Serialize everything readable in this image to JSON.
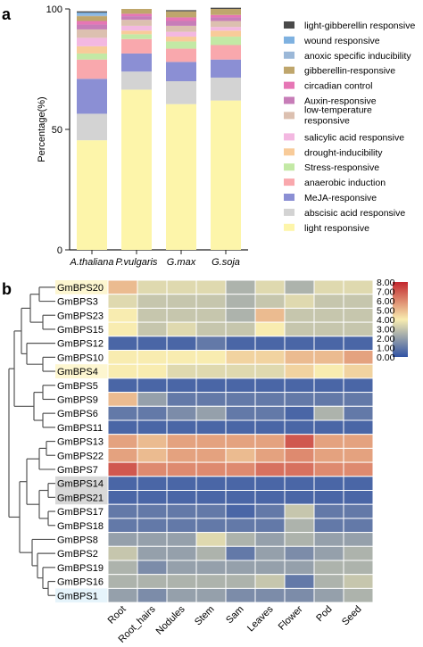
{
  "panels": {
    "a": "a",
    "b": "b"
  },
  "chart_data": [
    {
      "type": "bar",
      "stacked": true,
      "categories": [
        "A.thaliana",
        "P.vulgaris",
        "G.max",
        "G.soja"
      ],
      "ylabel": "Percentage(%)",
      "yticks": [
        0,
        50,
        100
      ],
      "ylim": [
        0,
        100
      ],
      "legend_position": "right",
      "series": [
        {
          "name": "light responsive",
          "color": "#fdf5aa",
          "values": [
            45.5,
            66.5,
            60.5,
            62.0
          ]
        },
        {
          "name": "abscisic acid responsive",
          "color": "#d3d3d3",
          "values": [
            11.0,
            7.5,
            9.5,
            9.5
          ]
        },
        {
          "name": "MeJA-responsive",
          "color": "#8b8fd4",
          "values": [
            14.5,
            7.5,
            8.0,
            7.5
          ]
        },
        {
          "name": "anaerobic induction",
          "color": "#f9a8ad",
          "values": [
            8.0,
            6.0,
            5.5,
            6.0
          ]
        },
        {
          "name": "Stress-responsive",
          "color": "#c3e9a5",
          "values": [
            2.5,
            2.0,
            3.0,
            3.5
          ]
        },
        {
          "name": "drought-inducibility",
          "color": "#f8cb99",
          "values": [
            3.0,
            1.5,
            2.0,
            2.5
          ]
        },
        {
          "name": "salicylic acid responsive",
          "color": "#f3b8e1",
          "values": [
            3.5,
            2.0,
            2.0,
            1.5
          ]
        },
        {
          "name": "low-temperature responsive",
          "color": "#dcc0b0",
          "values": [
            3.5,
            2.5,
            2.5,
            2.5
          ]
        },
        {
          "name": "Auxin-responsive",
          "color": "#c77db8",
          "values": [
            2.0,
            1.5,
            2.0,
            1.5
          ]
        },
        {
          "name": "circadian control",
          "color": "#e676b5",
          "values": [
            1.5,
            1.0,
            1.5,
            1.0
          ]
        },
        {
          "name": "gibberellin-responsive",
          "color": "#bfa66c",
          "values": [
            2.0,
            2.0,
            2.5,
            2.5
          ]
        },
        {
          "name": "anoxic specific inducibility",
          "color": "#9bb8d8",
          "values": [
            0.5,
            0.0,
            0.0,
            0.0
          ]
        },
        {
          "name": "wound responsive",
          "color": "#7eb1e0",
          "values": [
            1.0,
            0.0,
            0.0,
            0.0
          ]
        },
        {
          "name": "light-gibberellin responsive",
          "color": "#4a4a4a",
          "values": [
            0.5,
            0.0,
            0.5,
            0.5
          ]
        }
      ]
    },
    {
      "type": "heatmap",
      "rows": [
        "GmBPS20",
        "GmBPS3",
        "GmBPS23",
        "GmBPS15",
        "GmBPS12",
        "GmBPS10",
        "GmBPS4",
        "GmBPS5",
        "GmBPS9",
        "GmBPS6",
        "GmBPS11",
        "GmBPS13",
        "GmBPS22",
        "GmBPS7",
        "GmBPS14",
        "GmBPS21",
        "GmBPS17",
        "GmBPS18",
        "GmBPS8",
        "GmBPS2",
        "GmBPS19",
        "GmBPS16",
        "GmBPS1"
      ],
      "row_highlight": [
        "#fdf6d0",
        "#ffffff",
        "#ffffff",
        "#ffffff",
        "#ffffff",
        "#ffffff",
        "#fdf6d0",
        "#ffffff",
        "#ffffff",
        "#ffffff",
        "#ffffff",
        "#ffffff",
        "#ffffff",
        "#ffffff",
        "#d8d8d8",
        "#d8d8d8",
        "#ffffff",
        "#ffffff",
        "#ffffff",
        "#ffffff",
        "#ffffff",
        "#ffffff",
        "#e6f4fb"
      ],
      "columns": [
        "Root",
        "Root_hairs",
        "Nodules",
        "Stem",
        "Sam",
        "Leaves",
        "Flower",
        "Pod",
        "Seed"
      ],
      "values": [
        [
          5.0,
          3.5,
          3.5,
          3.5,
          2.5,
          3.5,
          2.5,
          3.5,
          3.5
        ],
        [
          3.5,
          3.0,
          3.0,
          3.0,
          2.5,
          3.0,
          3.5,
          3.0,
          3.0
        ],
        [
          4.0,
          3.0,
          3.0,
          3.0,
          2.5,
          5.0,
          3.0,
          3.0,
          3.0
        ],
        [
          4.0,
          3.0,
          3.5,
          3.0,
          3.0,
          4.0,
          3.0,
          3.0,
          3.0
        ],
        [
          0.5,
          0.5,
          0.5,
          1.0,
          0.5,
          0.5,
          0.5,
          0.5,
          0.5
        ],
        [
          4.0,
          4.0,
          4.0,
          4.0,
          4.5,
          4.5,
          5.0,
          5.0,
          5.5
        ],
        [
          4.0,
          4.0,
          3.5,
          3.5,
          3.5,
          3.5,
          4.5,
          4.0,
          4.5
        ],
        [
          0.5,
          0.5,
          0.5,
          0.5,
          0.5,
          0.5,
          0.5,
          0.5,
          0.5
        ],
        [
          5.0,
          2.0,
          1.0,
          1.0,
          1.0,
          1.0,
          1.0,
          1.0,
          1.0
        ],
        [
          1.0,
          1.0,
          1.5,
          2.0,
          1.0,
          1.0,
          0.5,
          2.5,
          1.0
        ],
        [
          0.5,
          0.5,
          0.5,
          0.5,
          0.5,
          0.5,
          0.5,
          0.5,
          0.5
        ],
        [
          5.5,
          5.0,
          5.5,
          5.5,
          5.5,
          5.5,
          7.0,
          5.5,
          5.5
        ],
        [
          5.5,
          5.0,
          5.5,
          5.5,
          5.0,
          5.5,
          6.0,
          5.5,
          5.5
        ],
        [
          7.0,
          6.0,
          6.0,
          6.0,
          6.0,
          6.5,
          6.5,
          6.0,
          6.0
        ],
        [
          0.5,
          0.5,
          0.5,
          0.5,
          0.5,
          0.5,
          0.5,
          0.5,
          0.5
        ],
        [
          0.5,
          0.5,
          0.5,
          0.5,
          0.5,
          0.5,
          0.5,
          0.5,
          0.5
        ],
        [
          1.0,
          1.0,
          1.0,
          1.0,
          0.5,
          1.0,
          3.0,
          1.0,
          1.0
        ],
        [
          1.0,
          1.0,
          1.0,
          1.0,
          1.0,
          1.0,
          2.5,
          1.0,
          1.0
        ],
        [
          2.0,
          2.0,
          2.0,
          3.5,
          2.5,
          2.0,
          2.5,
          2.0,
          2.0
        ],
        [
          3.0,
          2.0,
          2.0,
          2.5,
          1.0,
          2.0,
          1.5,
          2.0,
          2.5
        ],
        [
          2.5,
          1.5,
          2.0,
          2.0,
          2.0,
          2.0,
          2.0,
          2.5,
          2.5
        ],
        [
          2.5,
          2.5,
          2.5,
          2.5,
          2.5,
          3.0,
          1.0,
          2.5,
          3.0
        ],
        [
          2.0,
          1.5,
          2.0,
          2.0,
          1.5,
          1.5,
          1.5,
          2.0,
          2.5
        ]
      ],
      "color_scale": {
        "min": 0.0,
        "max": 8.0,
        "colors": [
          "#3153a5",
          "#f8ecb0",
          "#c3272e"
        ]
      },
      "colorbar_ticks": [
        "0.00",
        "1.00",
        "2.00",
        "3.00",
        "4.00",
        "5.00",
        "6.00",
        "7.00",
        "8.00"
      ],
      "dendrogram_order": [
        [
          "GmBPS20",
          "GmBPS3",
          "GmBPS23",
          "GmBPS15"
        ],
        [
          "GmBPS12"
        ],
        [
          "GmBPS10",
          "GmBPS4"
        ],
        [
          "GmBPS5",
          "GmBPS9",
          "GmBPS6",
          "GmBPS11"
        ],
        [
          "GmBPS13",
          "GmBPS22",
          "GmBPS7"
        ],
        [
          "GmBPS14",
          "GmBPS21",
          "GmBPS17",
          "GmBPS18"
        ],
        [
          "GmBPS8",
          "GmBPS2",
          "GmBPS19",
          "GmBPS16",
          "GmBPS1"
        ]
      ]
    }
  ]
}
